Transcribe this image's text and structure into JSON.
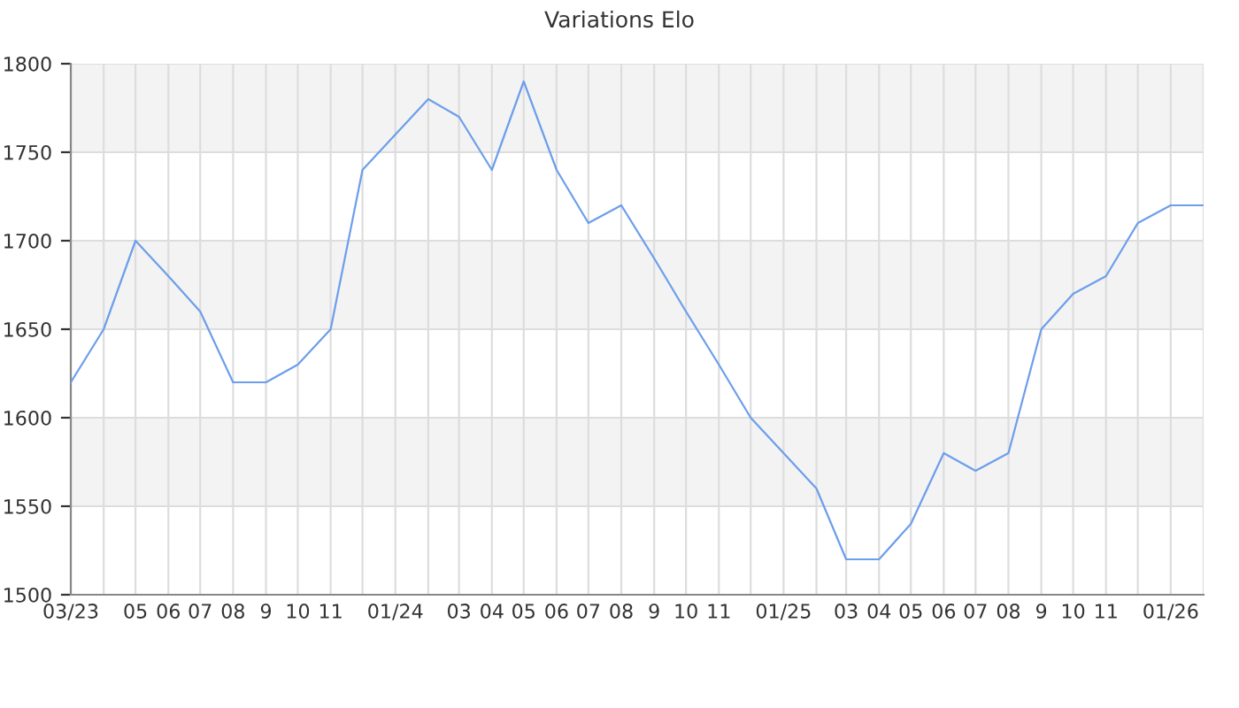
{
  "chart_data": {
    "type": "line",
    "title": "Variations Elo",
    "x": [
      "2023-03",
      "2023-04",
      "2023-05",
      "2023-06",
      "2023-07",
      "2023-08",
      "2023-09",
      "2023-10",
      "2023-11",
      "2023-12",
      "2024-01",
      "2024-02",
      "2024-03",
      "2024-04",
      "2024-05",
      "2024-06",
      "2024-07",
      "2024-08",
      "2024-09",
      "2024-10",
      "2024-11",
      "2024-12",
      "2025-01",
      "2025-02",
      "2025-03",
      "2025-04",
      "2025-05",
      "2025-06",
      "2025-07",
      "2025-08",
      "2025-09",
      "2025-10",
      "2025-11",
      "2025-12",
      "2026-01",
      "2026-02"
    ],
    "series": [
      {
        "color": "#6d9eeb",
        "values": [
          1620,
          1650,
          1700,
          1680,
          1660,
          1620,
          1620,
          1630,
          1650,
          1740,
          1760,
          1780,
          1770,
          1740,
          1790,
          1740,
          1710,
          1720,
          1690,
          1660,
          1630,
          1600,
          1580,
          1560,
          1520,
          1520,
          1540,
          1580,
          1570,
          1580,
          1650,
          1670,
          1680,
          1710,
          1720,
          1720
        ]
      }
    ],
    "xlim": [
      "2023-03",
      "2026-02"
    ],
    "xticks": [
      {
        "value": "2023-03",
        "label": "03/23"
      },
      {
        "value": "2023-04",
        "label": null
      },
      {
        "value": "2023-05",
        "label": "05"
      },
      {
        "value": "2023-06",
        "label": "06"
      },
      {
        "value": "2023-07",
        "label": "07"
      },
      {
        "value": "2023-08",
        "label": "08"
      },
      {
        "value": "2023-09",
        "label": "9"
      },
      {
        "value": "2023-10",
        "label": "10"
      },
      {
        "value": "2023-11",
        "label": "11"
      },
      {
        "value": "2023-12",
        "label": null
      },
      {
        "value": "2024-01",
        "label": "01/24"
      },
      {
        "value": "2024-02",
        "label": null
      },
      {
        "value": "2024-03",
        "label": "03"
      },
      {
        "value": "2024-04",
        "label": "04"
      },
      {
        "value": "2024-05",
        "label": "05"
      },
      {
        "value": "2024-06",
        "label": "06"
      },
      {
        "value": "2024-07",
        "label": "07"
      },
      {
        "value": "2024-08",
        "label": "08"
      },
      {
        "value": "2024-09",
        "label": "9"
      },
      {
        "value": "2024-10",
        "label": "10"
      },
      {
        "value": "2024-11",
        "label": "11"
      },
      {
        "value": "2024-12",
        "label": null
      },
      {
        "value": "2025-01",
        "label": "01/25"
      },
      {
        "value": "2025-02",
        "label": null
      },
      {
        "value": "2025-03",
        "label": "03"
      },
      {
        "value": "2025-04",
        "label": "04"
      },
      {
        "value": "2025-05",
        "label": "05"
      },
      {
        "value": "2025-06",
        "label": "06"
      },
      {
        "value": "2025-07",
        "label": "07"
      },
      {
        "value": "2025-08",
        "label": "08"
      },
      {
        "value": "2025-09",
        "label": "9"
      },
      {
        "value": "2025-10",
        "label": "10"
      },
      {
        "value": "2025-11",
        "label": "11"
      },
      {
        "value": "2025-12",
        "label": null
      },
      {
        "value": "2026-01",
        "label": "01/26"
      },
      {
        "value": "2026-02",
        "label": null
      }
    ],
    "ylim": [
      1500,
      1800
    ],
    "yticks": [
      1500,
      1550,
      1600,
      1650,
      1700,
      1750,
      1800
    ],
    "bands": [
      {
        "axis": "y",
        "from": 1550,
        "to": 1600,
        "color": "#f3f3f3"
      },
      {
        "axis": "y",
        "from": 1650,
        "to": 1700,
        "color": "#f3f3f3"
      },
      {
        "axis": "y",
        "from": 1750,
        "to": 1800,
        "color": "#f3f3f3"
      }
    ],
    "grid": true,
    "legend": false,
    "marker": "none",
    "line_style": "solid"
  }
}
